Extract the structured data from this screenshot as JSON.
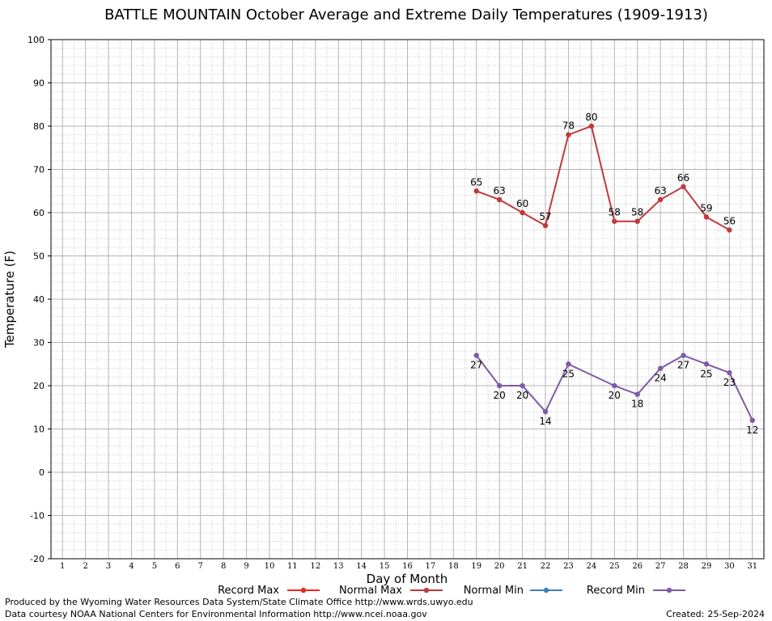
{
  "title": "BATTLE MOUNTAIN October Average and Extreme Daily Temperatures (1909-1913)",
  "credits": {
    "line1": "Produced by the Wyoming Water Resources Data System/State Climate Office http://www.wrds.uwyo.edu",
    "line2": "Data courtesy NOAA National Centers for Environmental Information http://www.ncei.noaa.gov",
    "created_label": "Created:",
    "created_date": "25-Sep-2024"
  },
  "chart_data": {
    "type": "line",
    "title": "BATTLE MOUNTAIN October Average and Extreme Daily Temperatures (1909-1913)",
    "xlabel": "Day of Month",
    "ylabel": "Temperature (F)",
    "xlim": [
      0.5,
      31.5
    ],
    "ylim": [
      -20,
      100
    ],
    "x_ticks": [
      1,
      2,
      3,
      4,
      5,
      6,
      7,
      8,
      9,
      10,
      11,
      12,
      13,
      14,
      15,
      16,
      17,
      18,
      19,
      20,
      21,
      22,
      23,
      24,
      25,
      26,
      27,
      28,
      29,
      30,
      31
    ],
    "y_ticks": [
      -20,
      -10,
      0,
      10,
      20,
      30,
      40,
      50,
      60,
      70,
      80,
      90,
      100
    ],
    "grid": true,
    "legend_position": "bottom",
    "series": [
      {
        "name": "Record Max",
        "color": "#e8271d",
        "points": []
      },
      {
        "name": "Normal Max",
        "color": "#c0393b",
        "label_side": "above",
        "points": [
          [
            19,
            65
          ],
          [
            20,
            63
          ],
          [
            21,
            60
          ],
          [
            22,
            57
          ],
          [
            23,
            78
          ],
          [
            24,
            80
          ],
          [
            25,
            58
          ],
          [
            26,
            58
          ],
          [
            27,
            63
          ],
          [
            28,
            66
          ],
          [
            29,
            59
          ],
          [
            30,
            56
          ]
        ]
      },
      {
        "name": "Normal Min",
        "color": "#3f7fbf",
        "points": []
      },
      {
        "name": "Record Min",
        "color": "#7f5aa8",
        "label_side": "below",
        "points": [
          [
            19,
            27
          ],
          [
            20,
            20
          ],
          [
            21,
            20
          ],
          [
            22,
            14
          ],
          [
            23,
            25
          ],
          [
            25,
            20
          ],
          [
            26,
            18
          ],
          [
            27,
            24
          ],
          [
            28,
            27
          ],
          [
            29,
            25
          ],
          [
            30,
            23
          ],
          [
            31,
            12
          ]
        ]
      }
    ]
  }
}
